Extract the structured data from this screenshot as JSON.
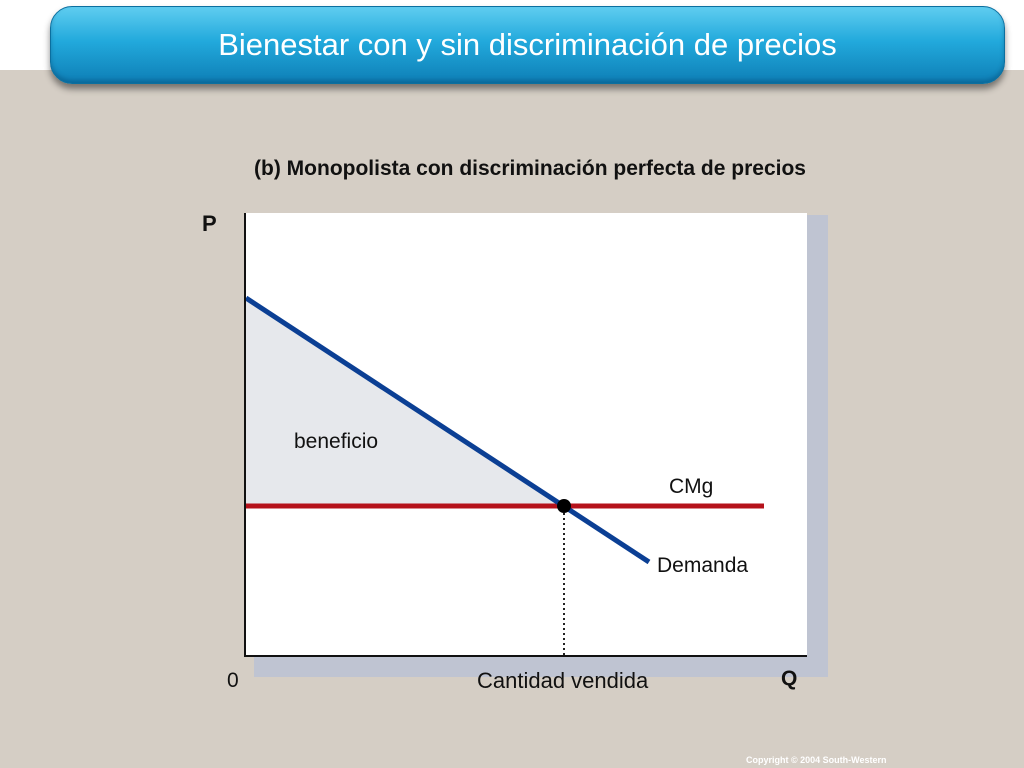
{
  "slide": {
    "title": "Bienestar con y sin discriminación de precios",
    "subtitle": "(b) Monopolista con discriminación perfecta de precios",
    "copyright": "Copyright © 2004  South-Western"
  },
  "diagram": {
    "axis_y_label": "P",
    "axis_x_label": "Q",
    "origin_label": "0",
    "quantity_label": "Cantidad vendida",
    "area_label": "beneficio",
    "cost_curve_label": "CMg",
    "demand_curve_label": "Demanda",
    "colors": {
      "demand": "#0b3f94",
      "marginal_cost": "#b5121b",
      "profit_area": "#e6e8ec",
      "axes": "#111111"
    }
  }
}
